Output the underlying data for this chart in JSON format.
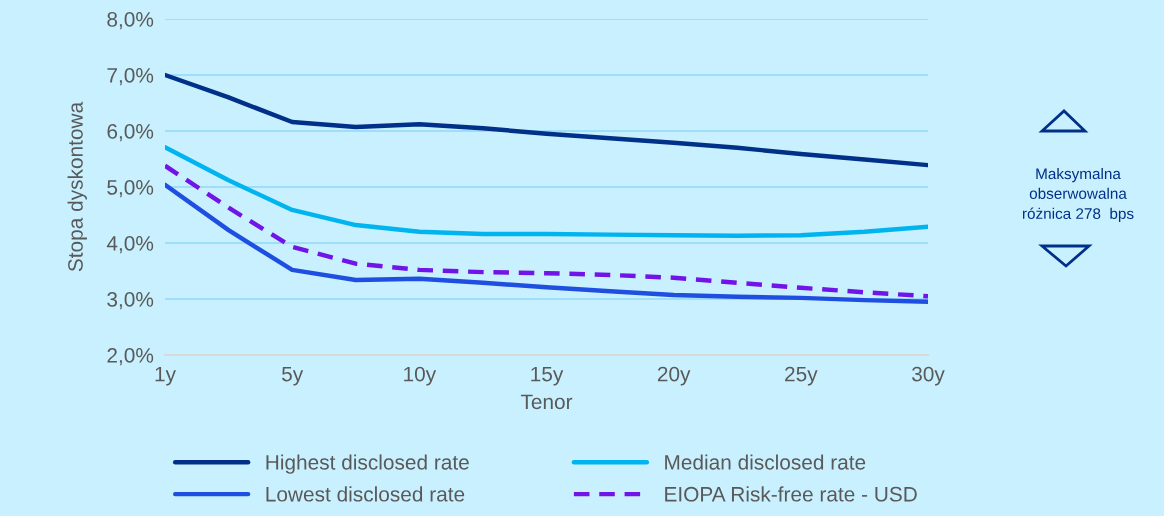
{
  "chart_data": {
    "type": "line",
    "xlabel": "Tenor",
    "ylabel": "Stopa dyskontowa",
    "categories": [
      "1y",
      null,
      "5y",
      null,
      "10y",
      null,
      "15y",
      null,
      "20y",
      null,
      "25y",
      null,
      "30y"
    ],
    "ylim": [
      2,
      8
    ],
    "yticks": [
      {
        "value": 2,
        "label": "2,0%"
      },
      {
        "value": 3,
        "label": "3,0%"
      },
      {
        "value": 4,
        "label": "4,0%"
      },
      {
        "value": 5,
        "label": "5,0%"
      },
      {
        "value": 6,
        "label": "6,0%"
      },
      {
        "value": 7,
        "label": "7,0%"
      },
      {
        "value": 8,
        "label": "8,0%"
      }
    ],
    "grid": "y",
    "legend": "bottom",
    "marker": "none",
    "series": [
      {
        "name": "Highest disclosed rate",
        "color": "#003087",
        "values": [
          7.0,
          6.6,
          6.16,
          6.07,
          6.12,
          6.05,
          5.95,
          5.87,
          5.79,
          5.7,
          5.59,
          5.49,
          5.39
        ]
      },
      {
        "name": "Median disclosed rate",
        "color": "#00b4f0",
        "values": [
          5.71,
          5.12,
          4.59,
          4.32,
          4.2,
          4.16,
          4.16,
          4.15,
          4.14,
          4.13,
          4.14,
          4.2,
          4.29
        ]
      },
      {
        "name": "Lowest disclosed rate",
        "color": "#1f4fe0",
        "values": [
          5.04,
          4.23,
          3.52,
          3.34,
          3.36,
          3.29,
          3.21,
          3.14,
          3.07,
          3.04,
          3.02,
          2.98,
          2.95
        ]
      },
      {
        "name": "EIOPA Risk-free rate - USD",
        "color": "#7014e8",
        "line_style": "dashed",
        "values": [
          5.38,
          4.63,
          3.93,
          3.63,
          3.52,
          3.48,
          3.46,
          3.43,
          3.38,
          3.29,
          3.2,
          3.12,
          3.05
        ]
      }
    ],
    "annotations": [
      "Maksymalna\nobserwowalna\nróżnica 278  bps"
    ]
  }
}
